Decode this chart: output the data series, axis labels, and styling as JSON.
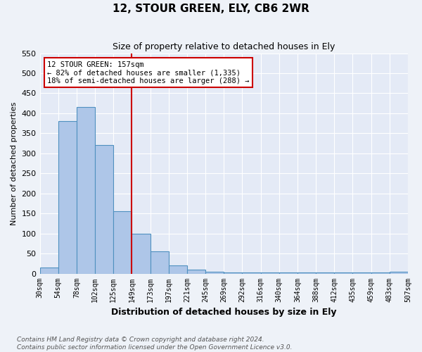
{
  "title": "12, STOUR GREEN, ELY, CB6 2WR",
  "subtitle": "Size of property relative to detached houses in Ely",
  "xlabel": "Distribution of detached houses by size in Ely",
  "ylabel": "Number of detached properties",
  "bin_labels": [
    "30sqm",
    "54sqm",
    "78sqm",
    "102sqm",
    "125sqm",
    "149sqm",
    "173sqm",
    "197sqm",
    "221sqm",
    "245sqm",
    "269sqm",
    "292sqm",
    "316sqm",
    "340sqm",
    "364sqm",
    "388sqm",
    "412sqm",
    "435sqm",
    "459sqm",
    "483sqm",
    "507sqm"
  ],
  "bar_heights": [
    15,
    380,
    415,
    320,
    155,
    100,
    55,
    20,
    10,
    5,
    3,
    2,
    2,
    3,
    2,
    3,
    3,
    2,
    3,
    5
  ],
  "bar_color": "#aec6e8",
  "bar_edge_color": "#5090c0",
  "vline_index": 5,
  "vline_color": "#cc0000",
  "annotation_text": "12 STOUR GREEN: 157sqm\n← 82% of detached houses are smaller (1,335)\n18% of semi-detached houses are larger (288) →",
  "annotation_box_color": "#ffffff",
  "annotation_box_edge": "#cc0000",
  "ylim": [
    0,
    550
  ],
  "yticks": [
    0,
    50,
    100,
    150,
    200,
    250,
    300,
    350,
    400,
    450,
    500,
    550
  ],
  "footer": "Contains HM Land Registry data © Crown copyright and database right 2024.\nContains public sector information licensed under the Open Government Licence v3.0.",
  "bg_color": "#eef2f8",
  "plot_bg_color": "#e4eaf6"
}
